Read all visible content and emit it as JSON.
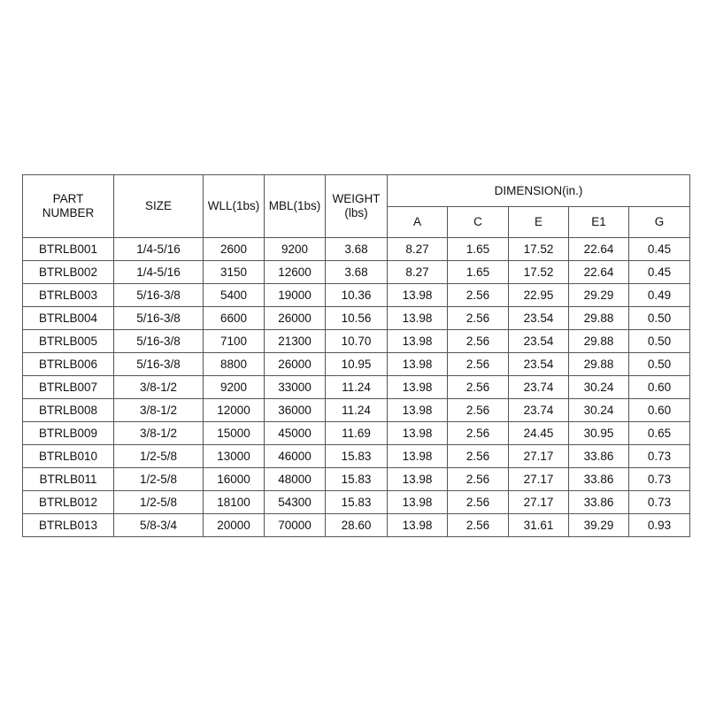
{
  "table": {
    "header": {
      "columns": [
        [
          "PART",
          "NUMBER"
        ],
        [
          "SIZE"
        ],
        [
          "WLL(1bs)"
        ],
        [
          "MBL(1bs)"
        ],
        [
          "WEIGHT",
          "(lbs)"
        ]
      ],
      "group": "DIMENSION(in.)",
      "subcolumns": [
        "A",
        "C",
        "E",
        "E1",
        "G"
      ]
    },
    "rows": [
      [
        "BTRLB001",
        "1/4-5/16",
        "2600",
        "9200",
        "3.68",
        "8.27",
        "1.65",
        "17.52",
        "22.64",
        "0.45"
      ],
      [
        "BTRLB002",
        "1/4-5/16",
        "3150",
        "12600",
        "3.68",
        "8.27",
        "1.65",
        "17.52",
        "22.64",
        "0.45"
      ],
      [
        "BTRLB003",
        "5/16-3/8",
        "5400",
        "19000",
        "10.36",
        "13.98",
        "2.56",
        "22.95",
        "29.29",
        "0.49"
      ],
      [
        "BTRLB004",
        "5/16-3/8",
        "6600",
        "26000",
        "10.56",
        "13.98",
        "2.56",
        "23.54",
        "29.88",
        "0.50"
      ],
      [
        "BTRLB005",
        "5/16-3/8",
        "7100",
        "21300",
        "10.70",
        "13.98",
        "2.56",
        "23.54",
        "29.88",
        "0.50"
      ],
      [
        "BTRLB006",
        "5/16-3/8",
        "8800",
        "26000",
        "10.95",
        "13.98",
        "2.56",
        "23.54",
        "29.88",
        "0.50"
      ],
      [
        "BTRLB007",
        "3/8-1/2",
        "9200",
        "33000",
        "11.24",
        "13.98",
        "2.56",
        "23.74",
        "30.24",
        "0.60"
      ],
      [
        "BTRLB008",
        "3/8-1/2",
        "12000",
        "36000",
        "11.24",
        "13.98",
        "2.56",
        "23.74",
        "30.24",
        "0.60"
      ],
      [
        "BTRLB009",
        "3/8-1/2",
        "15000",
        "45000",
        "11.69",
        "13.98",
        "2.56",
        "24.45",
        "30.95",
        "0.65"
      ],
      [
        "BTRLB010",
        "1/2-5/8",
        "13000",
        "46000",
        "15.83",
        "13.98",
        "2.56",
        "27.17",
        "33.86",
        "0.73"
      ],
      [
        "BTRLB011",
        "1/2-5/8",
        "16000",
        "48000",
        "15.83",
        "13.98",
        "2.56",
        "27.17",
        "33.86",
        "0.73"
      ],
      [
        "BTRLB012",
        "1/2-5/8",
        "18100",
        "54300",
        "15.83",
        "13.98",
        "2.56",
        "27.17",
        "33.86",
        "0.73"
      ],
      [
        "BTRLB013",
        "5/8-3/4",
        "20000",
        "70000",
        "28.60",
        "13.98",
        "2.56",
        "31.61",
        "39.29",
        "0.93"
      ]
    ]
  }
}
